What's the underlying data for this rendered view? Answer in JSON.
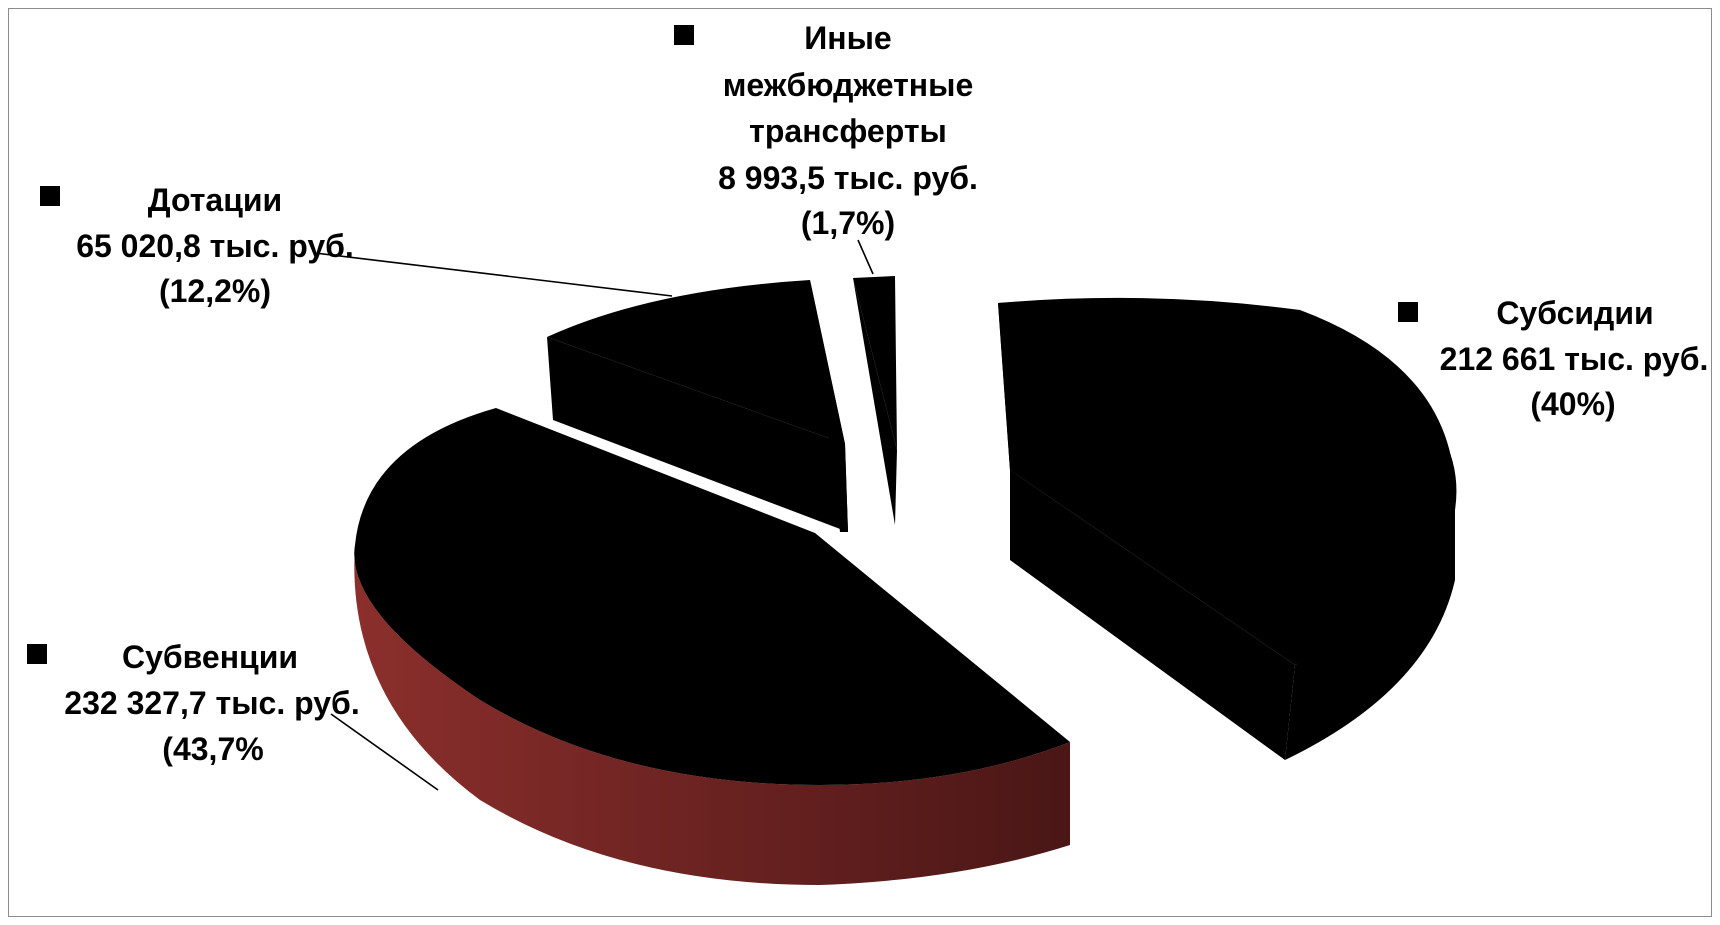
{
  "chart_data": {
    "type": "pie",
    "three_d": true,
    "exploded": true,
    "legend": "labels-with-markers",
    "slices": [
      {
        "name": "Субсидии",
        "value_text": "212 661 тыс. руб.",
        "percent_text": "(40%)",
        "value": 212661,
        "percent": 40,
        "color": "#4F81BD",
        "side_color": "#1F3350"
      },
      {
        "name": "Субвенции",
        "value_text": "232 327,7 тыс. руб.",
        "percent_text": "(43,7%",
        "value": 232327.7,
        "percent": 43.7,
        "color": "#C0504D",
        "side_color": "#8B2F2C",
        "side_color_dark": "#4A1616"
      },
      {
        "name": "Дотации",
        "value_text": "65 020,8 тыс. руб.",
        "percent_text": "(12,2%)",
        "value": 65020.8,
        "percent": 12.2,
        "color": "#9BBB59",
        "side_color": "#3E4B24"
      },
      {
        "name_lines": [
          "Иные",
          "межбюджетные",
          "трансферты"
        ],
        "value_text": "8 993,5 тыс. руб.",
        "percent_text": "(1,7%)",
        "value": 8993.5,
        "percent": 1.7,
        "color": "#8064A2",
        "side_color": "#2E2340"
      }
    ]
  }
}
